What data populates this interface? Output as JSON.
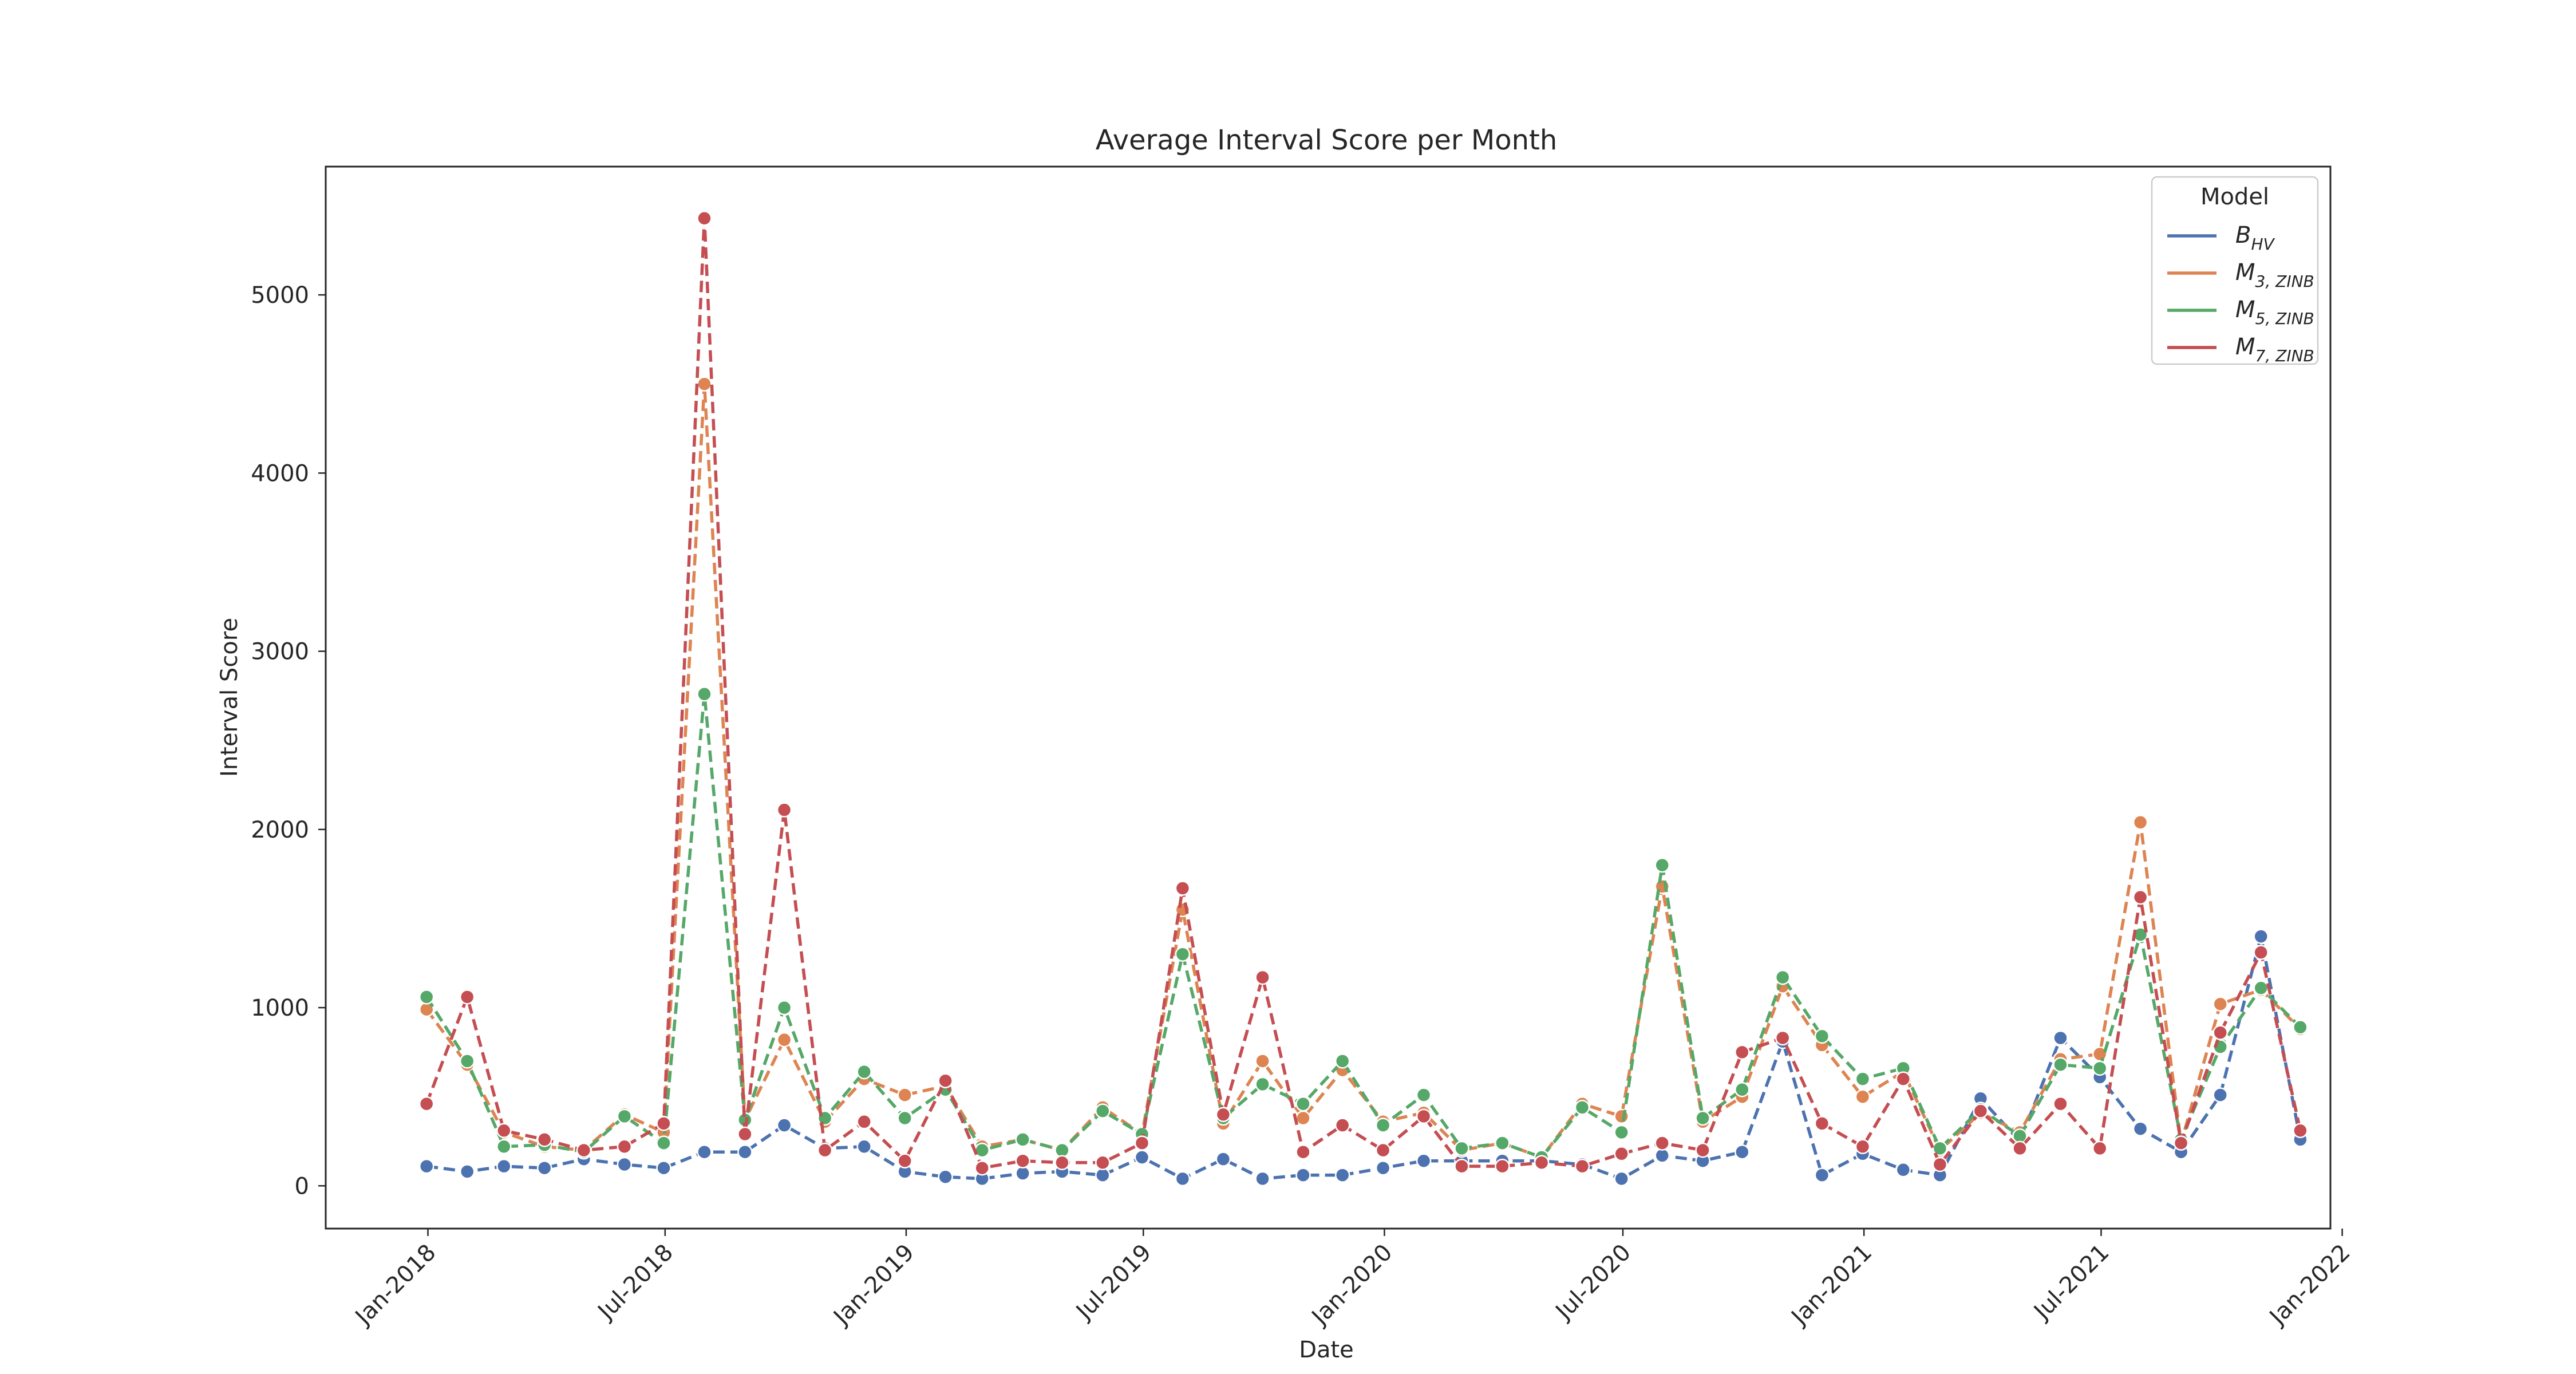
{
  "chart_data": {
    "type": "line",
    "title": "Average Interval Score per Month",
    "xlabel": "Date",
    "ylabel": "Interval Score",
    "xlim": [
      "2017-10-15",
      "2021-12-23"
    ],
    "ylim": [
      -240,
      5720
    ],
    "yticks": [
      0,
      1000,
      2000,
      3000,
      4000,
      5000
    ],
    "xticks": [
      "Jan-2018",
      "Jul-2018",
      "Jan-2019",
      "Jul-2019",
      "Jan-2020",
      "Jul-2020",
      "Jan-2021",
      "Jul-2021",
      "Jan-2022"
    ],
    "xtick_dates": [
      "2018-01-01",
      "2018-07-01",
      "2019-01-01",
      "2019-07-01",
      "2020-01-01",
      "2020-07-01",
      "2021-01-01",
      "2021-07-01",
      "2022-01-01"
    ],
    "grid": false,
    "legend": {
      "title": "Model",
      "position": "top-right"
    },
    "x": [
      "2017-12-31",
      "2018-01-31",
      "2018-02-28",
      "2018-03-31",
      "2018-04-30",
      "2018-05-31",
      "2018-06-30",
      "2018-07-31",
      "2018-08-31",
      "2018-09-30",
      "2018-10-31",
      "2018-11-30",
      "2018-12-31",
      "2019-01-31",
      "2019-02-28",
      "2019-03-31",
      "2019-04-30",
      "2019-05-31",
      "2019-06-30",
      "2019-07-31",
      "2019-08-31",
      "2019-09-30",
      "2019-10-31",
      "2019-11-30",
      "2019-12-31",
      "2020-01-31",
      "2020-02-29",
      "2020-03-31",
      "2020-04-30",
      "2020-05-31",
      "2020-06-30",
      "2020-07-31",
      "2020-08-31",
      "2020-09-30",
      "2020-10-31",
      "2020-11-30",
      "2020-12-31",
      "2021-01-31",
      "2021-02-28",
      "2021-03-31",
      "2021-04-30",
      "2021-05-31",
      "2021-06-30",
      "2021-07-31",
      "2021-08-31",
      "2021-09-30",
      "2021-10-31",
      "2021-11-30"
    ],
    "series": [
      {
        "name": "B_HV",
        "label_base": "B",
        "label_sub": "HV",
        "color": "#4c72b0",
        "values": [
          110,
          80,
          110,
          100,
          150,
          120,
          100,
          190,
          190,
          340,
          210,
          220,
          80,
          50,
          40,
          70,
          80,
          60,
          160,
          40,
          150,
          40,
          60,
          60,
          100,
          140,
          140,
          140,
          140,
          120,
          40,
          170,
          140,
          190,
          810,
          60,
          180,
          90,
          60,
          490,
          250,
          830,
          610,
          320,
          190,
          510,
          1400,
          260
        ]
      },
      {
        "name": "M_3,ZINB",
        "label_base": "M",
        "label_sub": "3, ZINB",
        "color": "#dd8452",
        "values": [
          990,
          680,
          300,
          220,
          200,
          400,
          300,
          4500,
          370,
          820,
          360,
          600,
          510,
          560,
          220,
          260,
          200,
          440,
          290,
          1550,
          350,
          700,
          380,
          650,
          360,
          410,
          200,
          240,
          160,
          460,
          390,
          1680,
          360,
          500,
          1120,
          790,
          500,
          640,
          200,
          410,
          300,
          710,
          740,
          2040,
          240,
          1020,
          1100,
          880
        ]
      },
      {
        "name": "M_5,ZINB",
        "label_base": "M",
        "label_sub": "5, ZINB",
        "color": "#55a868",
        "values": [
          1060,
          700,
          220,
          230,
          190,
          390,
          240,
          2760,
          370,
          1000,
          380,
          640,
          380,
          540,
          200,
          260,
          200,
          420,
          290,
          1300,
          380,
          570,
          460,
          700,
          340,
          510,
          210,
          240,
          160,
          440,
          300,
          1800,
          380,
          540,
          1170,
          840,
          600,
          660,
          210,
          430,
          280,
          680,
          660,
          1410,
          260,
          780,
          1110,
          890
        ]
      },
      {
        "name": "M_7,ZINB",
        "label_base": "M",
        "label_sub": "7, ZINB",
        "color": "#c44e52",
        "values": [
          460,
          1060,
          310,
          260,
          200,
          220,
          350,
          5430,
          290,
          2110,
          200,
          360,
          140,
          590,
          100,
          140,
          130,
          130,
          240,
          1670,
          400,
          1170,
          190,
          340,
          200,
          390,
          110,
          110,
          130,
          110,
          180,
          240,
          200,
          750,
          830,
          350,
          220,
          600,
          120,
          420,
          210,
          460,
          210,
          1620,
          240,
          860,
          1310,
          310
        ]
      }
    ]
  }
}
